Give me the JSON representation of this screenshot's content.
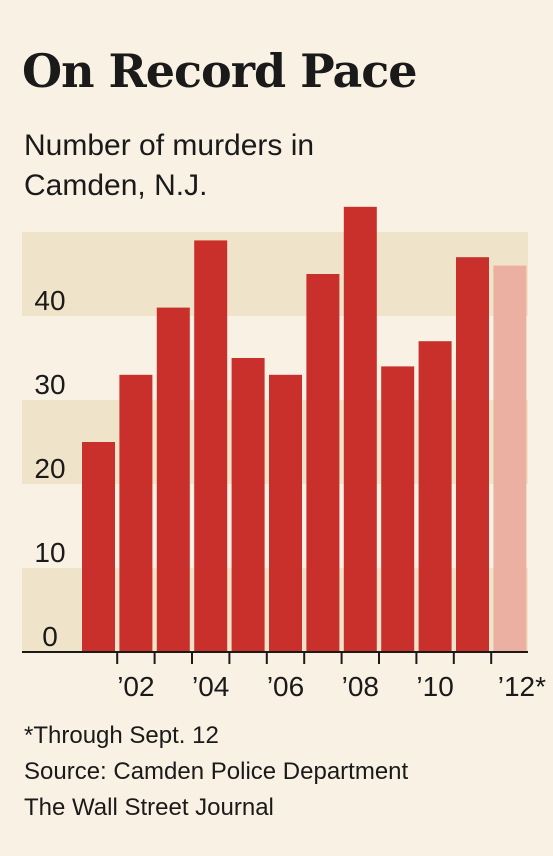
{
  "chart_data": {
    "type": "bar",
    "title": "On Record Pace",
    "subtitle": "Number of murders in Camden, N.J.",
    "categories": [
      "2001",
      "2002",
      "2003",
      "2004",
      "2005",
      "2006",
      "2007",
      "2008",
      "2009",
      "2010",
      "2011",
      "2012"
    ],
    "tick_labels": [
      "",
      "’02",
      "",
      "’04",
      "",
      "’06",
      "",
      "’08",
      "",
      "’10",
      "",
      "’12*"
    ],
    "values": [
      25,
      33,
      41,
      49,
      35,
      33,
      45,
      53,
      34,
      37,
      47,
      46
    ],
    "highlight_index": 11,
    "yticks": [
      0,
      10,
      20,
      30,
      40
    ],
    "ylim": [
      0,
      50
    ],
    "grid": "alternating bands",
    "colors": {
      "bar": "#c9302c",
      "bar_partial": "#ecb0a2",
      "band": "#efe3c9",
      "background": "#f8f1e4"
    }
  },
  "notes": {
    "footnote": "*Through Sept. 12",
    "source": "Source: Camden Police Department",
    "publisher": "The Wall Street Journal"
  }
}
